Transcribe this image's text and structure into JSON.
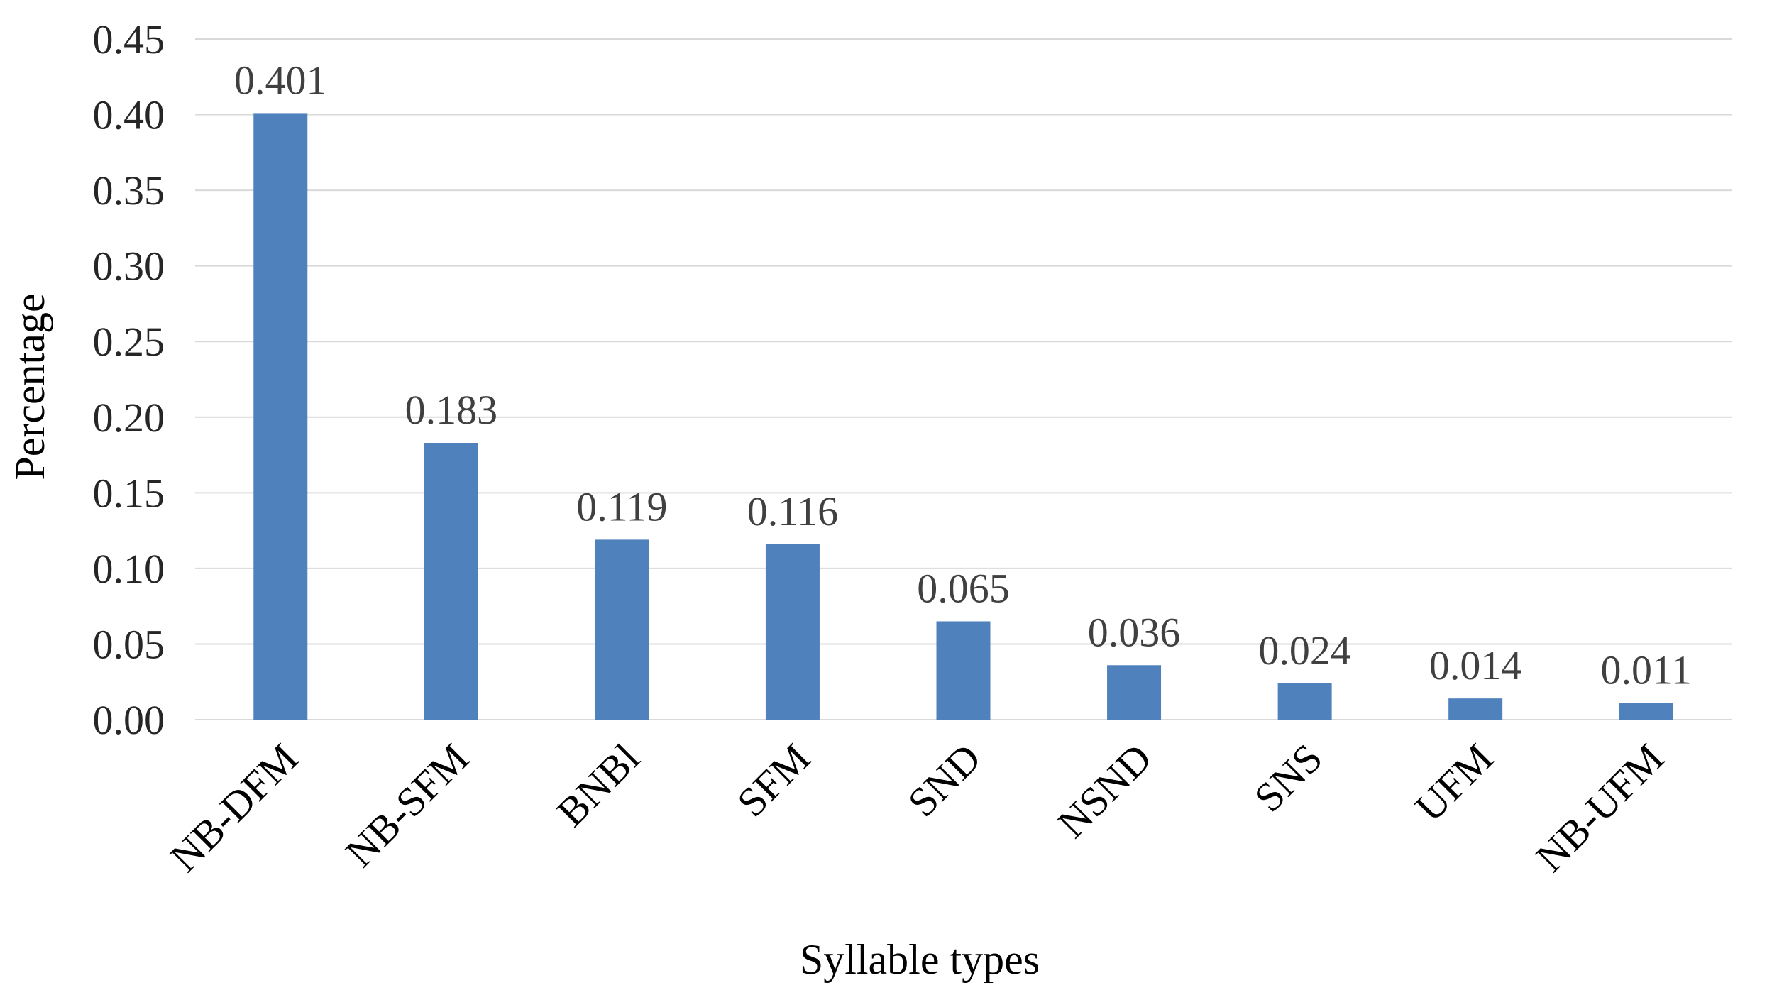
{
  "chart_data": {
    "type": "bar",
    "title": "",
    "xlabel": "Syllable types",
    "ylabel": "Percentage",
    "categories": [
      "NB-DFM",
      "NB-SFM",
      "BNBl",
      "SFM",
      "SND",
      "NSND",
      "SNS",
      "UFM",
      "NB-UFM"
    ],
    "values": [
      0.401,
      0.183,
      0.119,
      0.116,
      0.065,
      0.036,
      0.024,
      0.014,
      0.011
    ],
    "data_labels": [
      "0.401",
      "0.183",
      "0.119",
      "0.116",
      "0.065",
      "0.036",
      "0.024",
      "0.014",
      "0.011"
    ],
    "ylim": [
      0,
      0.45
    ],
    "yticks": [
      0,
      0.05,
      0.1,
      0.15,
      0.2,
      0.25,
      0.3,
      0.35,
      0.4,
      0.45
    ],
    "ytick_labels": [
      "0.00",
      "0.05",
      "0.10",
      "0.15",
      "0.20",
      "0.25",
      "0.30",
      "0.35",
      "0.40",
      "0.45"
    ],
    "grid": true,
    "legend": "none",
    "bar_color": "#4f81bd",
    "grid_color": "#d9d9d9"
  }
}
